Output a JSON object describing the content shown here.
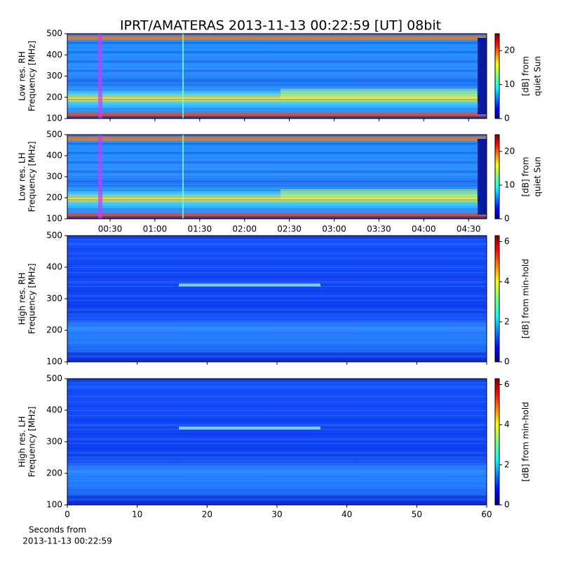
{
  "title": "IPRT/AMATERAS 2013-11-13 00:22:59 [UT]   08bit",
  "chart_data": [
    {
      "type": "spectrogram",
      "ylabel": [
        "Low res. RH",
        "Frequency [MHz]"
      ],
      "ylim": [
        100,
        500
      ],
      "yticks": [
        100,
        200,
        300,
        400,
        500
      ],
      "colorbar": {
        "label": [
          "[dB] from",
          "quiet Sun"
        ],
        "lim": [
          0,
          25
        ],
        "ticks": [
          0,
          10,
          20
        ]
      }
    },
    {
      "type": "spectrogram",
      "ylabel": [
        "Low res. LH",
        "Frequency [MHz]"
      ],
      "ylim": [
        100,
        500
      ],
      "yticks": [
        100,
        200,
        300,
        400,
        500
      ],
      "xticks": [
        "00:30",
        "01:00",
        "01:30",
        "02:00",
        "02:30",
        "03:00",
        "03:30",
        "04:00",
        "04:30"
      ],
      "colorbar": {
        "label": [
          "[dB] from",
          "quiet Sun"
        ],
        "lim": [
          0,
          25
        ],
        "ticks": [
          0,
          10,
          20
        ]
      }
    },
    {
      "type": "spectrogram",
      "ylabel": [
        "High res. RH",
        "Frequency [MHz]"
      ],
      "ylim": [
        100,
        500
      ],
      "yticks": [
        100,
        200,
        300,
        400,
        500
      ],
      "colorbar": {
        "label": [
          "[dB] from min-hold"
        ],
        "lim": [
          0,
          6.3
        ],
        "ticks": [
          0,
          2,
          4,
          6
        ]
      }
    },
    {
      "type": "spectrogram",
      "ylabel": [
        "High res. LH",
        "Frequency [MHz]"
      ],
      "ylim": [
        100,
        500
      ],
      "yticks": [
        100,
        200,
        300,
        400,
        500
      ],
      "xlim": [
        0,
        60
      ],
      "xticks": [
        0,
        10,
        20,
        30,
        40,
        50,
        60
      ],
      "xlabel": [
        "Seconds from",
        "2013-11-13 00:22:59"
      ],
      "colorbar": {
        "label": [
          "[dB] from min-hold"
        ],
        "lim": [
          0,
          6.3
        ],
        "ticks": [
          0,
          2,
          4,
          6
        ]
      }
    }
  ]
}
